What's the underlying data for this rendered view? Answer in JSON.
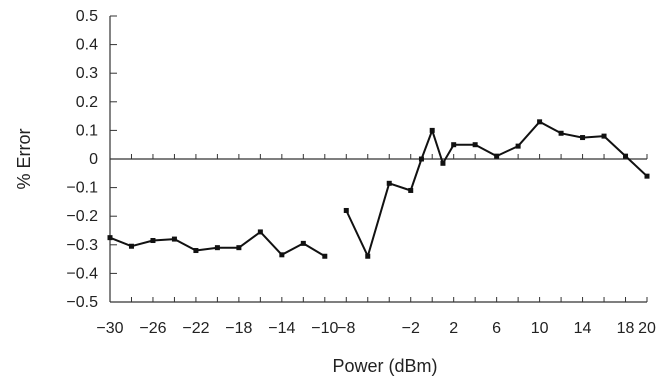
{
  "chart_data": {
    "type": "line",
    "title": "",
    "xlabel": "Power (dBm)",
    "ylabel": "% Error",
    "xlim": [
      -30,
      20
    ],
    "ylim": [
      -0.5,
      0.5
    ],
    "x_ticks": [
      "−30",
      "−26",
      "−22",
      "−18",
      "−14",
      "−10",
      "−8",
      "−2",
      "2",
      "6",
      "10",
      "14",
      "18",
      "20"
    ],
    "y_ticks": [
      "0.5",
      "0.4",
      "0.3",
      "0.2",
      "0.1",
      "0",
      "−0.1",
      "−0.2",
      "−0.3",
      "−0.4",
      "−0.5"
    ],
    "grid": false,
    "legend": "none",
    "line_color": "#111111",
    "series": [
      {
        "x": [
          -30,
          -28,
          -26,
          -24,
          -22,
          -20,
          -18,
          -16,
          -14,
          -12,
          -10,
          -8
        ],
        "y": [
          -0.275,
          -0.305,
          -0.285,
          -0.28,
          -0.32,
          -0.31,
          -0.31,
          -0.255,
          -0.335,
          -0.295,
          -0.34,
          null
        ]
      },
      {
        "x": [
          -8,
          -6,
          -4,
          -2,
          -1,
          0,
          1,
          2,
          4,
          6,
          8,
          10,
          12,
          14,
          16,
          18,
          20,
          22
        ],
        "y": [
          -0.18,
          -0.34,
          -0.085,
          -0.11,
          0.0,
          0.1,
          -0.015,
          0.05,
          0.05,
          0.01,
          0.045,
          0.13,
          0.09,
          0.075,
          0.08,
          0.01,
          -0.06,
          null
        ]
      }
    ]
  }
}
